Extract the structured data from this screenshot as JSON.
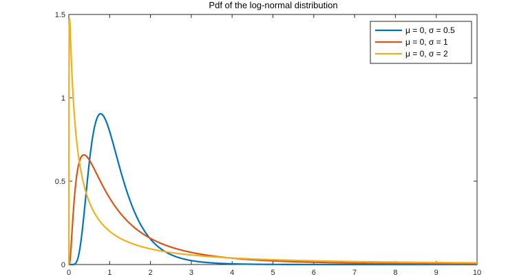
{
  "chart_data": {
    "type": "line",
    "title": "Pdf of the log-normal distribution",
    "xlabel": "",
    "ylabel": "",
    "xlim": [
      0,
      10
    ],
    "ylim": [
      0,
      1.5
    ],
    "x_ticks": [
      0,
      1,
      2,
      3,
      4,
      5,
      6,
      7,
      8,
      9,
      10
    ],
    "y_ticks": [
      0,
      0.5,
      1,
      1.5
    ],
    "x_tick_labels": [
      "0",
      "1",
      "2",
      "3",
      "4",
      "5",
      "6",
      "7",
      "8",
      "9",
      "10"
    ],
    "y_tick_labels": [
      "0",
      "0.5",
      "1",
      "1.5"
    ],
    "grid": false,
    "legend_position": "top-right",
    "series": [
      {
        "name": "μ = 0, σ = 0.5",
        "color": "#0072BD",
        "x": [
          0.1,
          0.2,
          0.3,
          0.4,
          0.5,
          0.6,
          0.7,
          0.8,
          0.9,
          1.0,
          1.2,
          1.4,
          1.6,
          1.8,
          2.0,
          2.5,
          3.0,
          3.5,
          4.0,
          5.0,
          6.0,
          8.0,
          10.0
        ],
        "y": [
          0.0002,
          0.0298,
          0.1956,
          0.4665,
          0.7049,
          0.8552,
          0.9061,
          0.8884,
          0.8282,
          0.7979,
          0.6404,
          0.479,
          0.351,
          0.255,
          0.1849,
          0.0852,
          0.0401,
          0.0196,
          0.0098,
          0.0027,
          0.0008,
          0.0001,
          0.0
        ]
      },
      {
        "name": "μ = 0, σ = 1",
        "color": "#D95319",
        "x": [
          0.05,
          0.1,
          0.2,
          0.3,
          0.4,
          0.5,
          0.6,
          0.8,
          1.0,
          1.5,
          2.0,
          2.5,
          3.0,
          4.0,
          5.0,
          6.0,
          7.0,
          8.0,
          10.0
        ],
        "y": [
          0.0898,
          0.2812,
          0.5463,
          0.644,
          0.6556,
          0.6275,
          0.5835,
          0.4864,
          0.3989,
          0.245,
          0.1569,
          0.1048,
          0.0727,
          0.0389,
          0.0219,
          0.0135,
          0.0087,
          0.0059,
          0.0028
        ]
      },
      {
        "name": "μ = 0, σ = 2",
        "color": "#EDB120",
        "x": [
          0.005,
          0.01,
          0.02,
          0.05,
          0.1,
          0.2,
          0.3,
          0.5,
          0.7,
          1.0,
          1.5,
          2.0,
          3.0,
          4.0,
          5.0,
          6.0,
          7.0,
          8.0,
          10.0
        ],
        "y": [
          0.495,
          1.049,
          1.5,
          1.5,
          1.176,
          0.778,
          0.5714,
          0.3637,
          0.266,
          0.1995,
          0.1271,
          0.0938,
          0.0578,
          0.0395,
          0.0305,
          0.0245,
          0.0201,
          0.0168,
          0.0125
        ]
      }
    ]
  }
}
